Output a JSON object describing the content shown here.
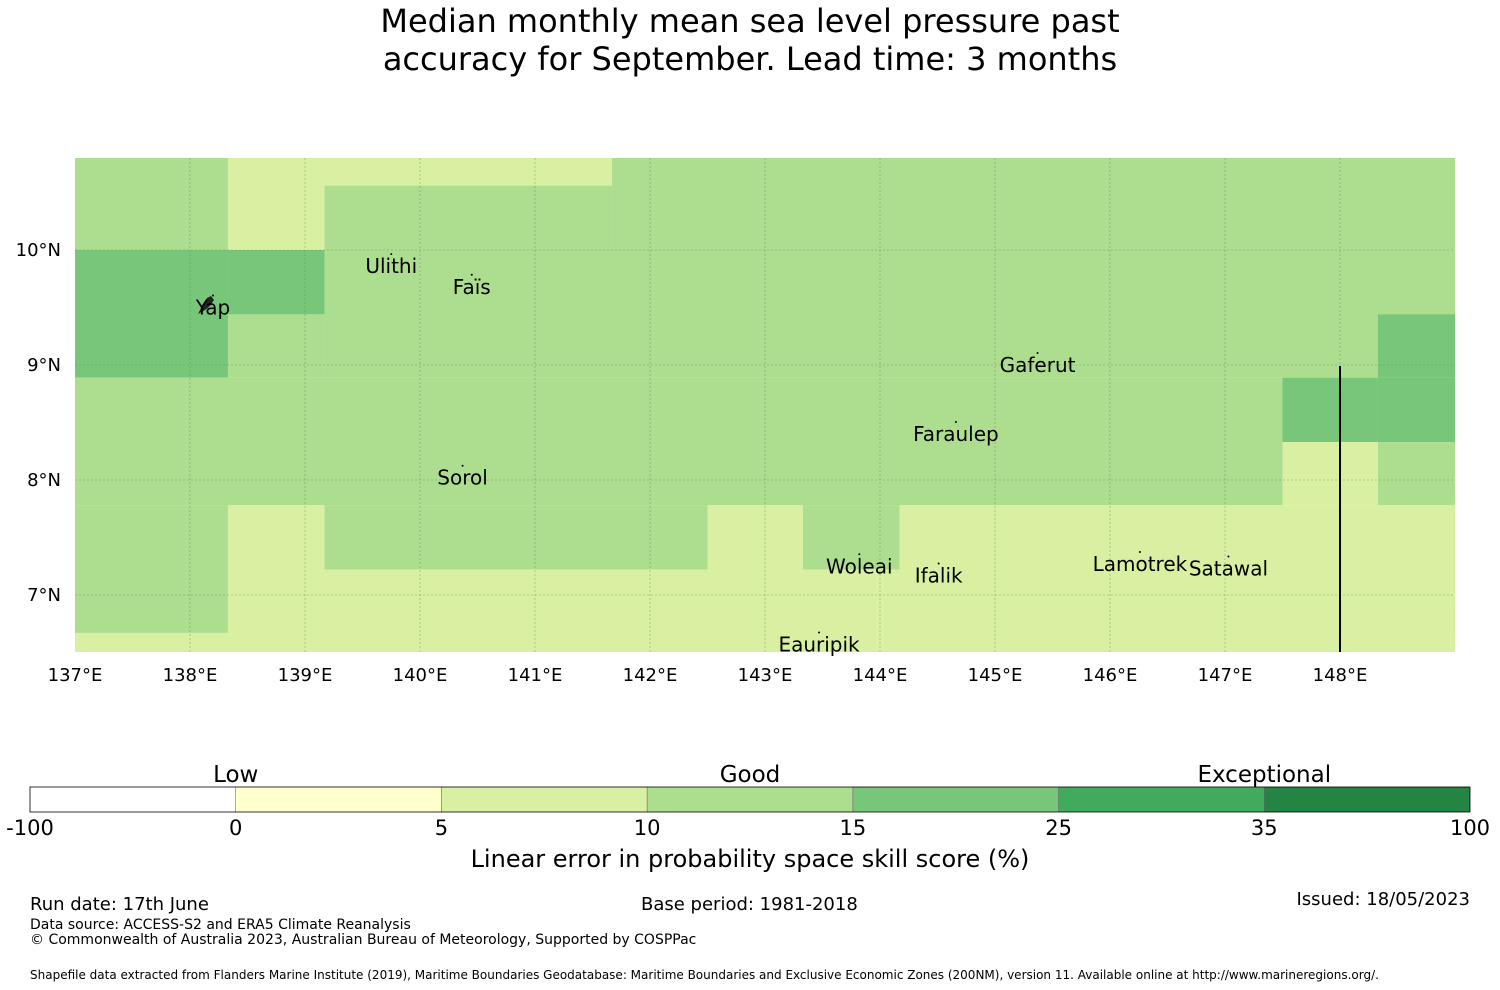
{
  "title_line1": "Median monthly mean sea level pressure past",
  "title_line2": "accuracy for September. Lead time: 3 months",
  "map": {
    "lon_range": [
      137.0,
      149.0
    ],
    "lat_range": [
      6.5,
      10.8
    ],
    "x_ticks": [
      "137°E",
      "138°E",
      "139°E",
      "140°E",
      "141°E",
      "142°E",
      "143°E",
      "144°E",
      "145°E",
      "146°E",
      "147°E",
      "148°E"
    ],
    "y_ticks": [
      "10°N",
      "9°N",
      "8°N",
      "7°N"
    ],
    "gridlines": "on",
    "places": [
      {
        "name": "Ulithi",
        "lon": 139.75,
        "lat": 9.86
      },
      {
        "name": "Faïs",
        "lon": 140.45,
        "lat": 9.68
      },
      {
        "name": "Yap",
        "lon": 138.2,
        "lat": 9.5
      },
      {
        "name": "Gaferut",
        "lon": 145.37,
        "lat": 9.0
      },
      {
        "name": "Faraulep",
        "lon": 144.66,
        "lat": 8.4
      },
      {
        "name": "Sorol",
        "lon": 140.37,
        "lat": 8.02
      },
      {
        "name": "Woleai",
        "lon": 143.82,
        "lat": 7.25
      },
      {
        "name": "Ifalik",
        "lon": 144.51,
        "lat": 7.17
      },
      {
        "name": "Lamotrek",
        "lon": 146.26,
        "lat": 7.27
      },
      {
        "name": "Satawal",
        "lon": 147.03,
        "lat": 7.23
      },
      {
        "name": "Eauripik",
        "lon": 143.47,
        "lat": 6.57
      }
    ]
  },
  "chart_data": {
    "type": "heatmap",
    "title": "Median monthly mean sea level pressure past accuracy for September. Lead time: 3 months",
    "colorbar_label": "Linear error in probability space skill score (%)",
    "bins": [
      {
        "from": -100,
        "to": 0,
        "color": "#ffffff"
      },
      {
        "from": 0,
        "to": 5,
        "color": "#ffffcc"
      },
      {
        "from": 5,
        "to": 10,
        "color": "#d9f0a3"
      },
      {
        "from": 10,
        "to": 15,
        "color": "#addd8e"
      },
      {
        "from": 15,
        "to": 25,
        "color": "#78c679"
      },
      {
        "from": 25,
        "to": 35,
        "color": "#41ab5d"
      },
      {
        "from": 35,
        "to": 100,
        "color": "#238443"
      }
    ],
    "tick_labels": [
      "-100",
      "0",
      "5",
      "10",
      "15",
      "25",
      "35",
      "100"
    ],
    "categories": [
      {
        "label": "Low",
        "bins": [
          0,
          1
        ]
      },
      {
        "label": "Good",
        "bins": [
          2,
          4
        ]
      },
      {
        "label": "Exceptional",
        "bins": [
          5,
          6
        ]
      }
    ],
    "cells_note": "grid cells as lon/lat rectangles with bin index",
    "cells": [
      {
        "lon": [
          137.0,
          138.33
        ],
        "lat": [
          10.0,
          10.8
        ],
        "bin": 3
      },
      {
        "lon": [
          138.33,
          139.17
        ],
        "lat": [
          10.0,
          10.8
        ],
        "bin": 2
      },
      {
        "lon": [
          139.17,
          141.67
        ],
        "lat": [
          10.56,
          10.8
        ],
        "bin": 2
      },
      {
        "lon": [
          139.17,
          141.67
        ],
        "lat": [
          10.0,
          10.56
        ],
        "bin": 3
      },
      {
        "lon": [
          141.67,
          149.0
        ],
        "lat": [
          10.0,
          10.8
        ],
        "bin": 3
      },
      {
        "lon": [
          137.0,
          138.33
        ],
        "lat": [
          8.89,
          10.0
        ],
        "bin": 4
      },
      {
        "lon": [
          138.33,
          139.17
        ],
        "lat": [
          9.44,
          10.0
        ],
        "bin": 4
      },
      {
        "lon": [
          138.33,
          139.17
        ],
        "lat": [
          8.89,
          9.44
        ],
        "bin": 3
      },
      {
        "lon": [
          139.17,
          149.0
        ],
        "lat": [
          8.89,
          10.0
        ],
        "bin": 3
      },
      {
        "lon": [
          148.33,
          149.0
        ],
        "lat": [
          8.89,
          9.44
        ],
        "bin": 4
      },
      {
        "lon": [
          137.0,
          147.5
        ],
        "lat": [
          7.78,
          8.89
        ],
        "bin": 3
      },
      {
        "lon": [
          147.5,
          148.33
        ],
        "lat": [
          8.33,
          8.89
        ],
        "bin": 4
      },
      {
        "lon": [
          148.33,
          149.0
        ],
        "lat": [
          8.33,
          8.89
        ],
        "bin": 4
      },
      {
        "lon": [
          147.5,
          148.33
        ],
        "lat": [
          7.78,
          8.33
        ],
        "bin": 2
      },
      {
        "lon": [
          148.33,
          149.0
        ],
        "lat": [
          7.78,
          8.33
        ],
        "bin": 3
      },
      {
        "lon": [
          137.0,
          138.33
        ],
        "lat": [
          6.67,
          7.78
        ],
        "bin": 3
      },
      {
        "lon": [
          137.0,
          138.33
        ],
        "lat": [
          6.5,
          6.67
        ],
        "bin": 2
      },
      {
        "lon": [
          138.33,
          139.17
        ],
        "lat": [
          6.5,
          7.78
        ],
        "bin": 2
      },
      {
        "lon": [
          139.17,
          142.5
        ],
        "lat": [
          7.22,
          7.78
        ],
        "bin": 3
      },
      {
        "lon": [
          139.17,
          142.5
        ],
        "lat": [
          6.5,
          7.22
        ],
        "bin": 2
      },
      {
        "lon": [
          142.5,
          143.33
        ],
        "lat": [
          6.5,
          7.78
        ],
        "bin": 2
      },
      {
        "lon": [
          143.33,
          144.17
        ],
        "lat": [
          7.22,
          7.78
        ],
        "bin": 3
      },
      {
        "lon": [
          143.33,
          144.17
        ],
        "lat": [
          6.5,
          7.22
        ],
        "bin": 2
      },
      {
        "lon": [
          144.17,
          149.0
        ],
        "lat": [
          6.5,
          7.78
        ],
        "bin": 2
      }
    ]
  },
  "footer": {
    "run_date": "Run date: 17th June",
    "base_period": "Base period: 1981-2018",
    "issued": "Issued: 18/05/2023",
    "data_source": "Data source: ACCESS-S2 and ERA5 Climate Reanalysis",
    "copyright": "© Commonwealth of Australia 2023, Australian Bureau of Meteorology, Supported by COSPPac",
    "shapefile": "Shapefile data extracted from Flanders Marine Institute (2019), Maritime Boundaries Geodatabase: Maritime Boundaries and Exclusive Economic Zones (200NM), version 11. Available online at http://www.marineregions.org/."
  }
}
